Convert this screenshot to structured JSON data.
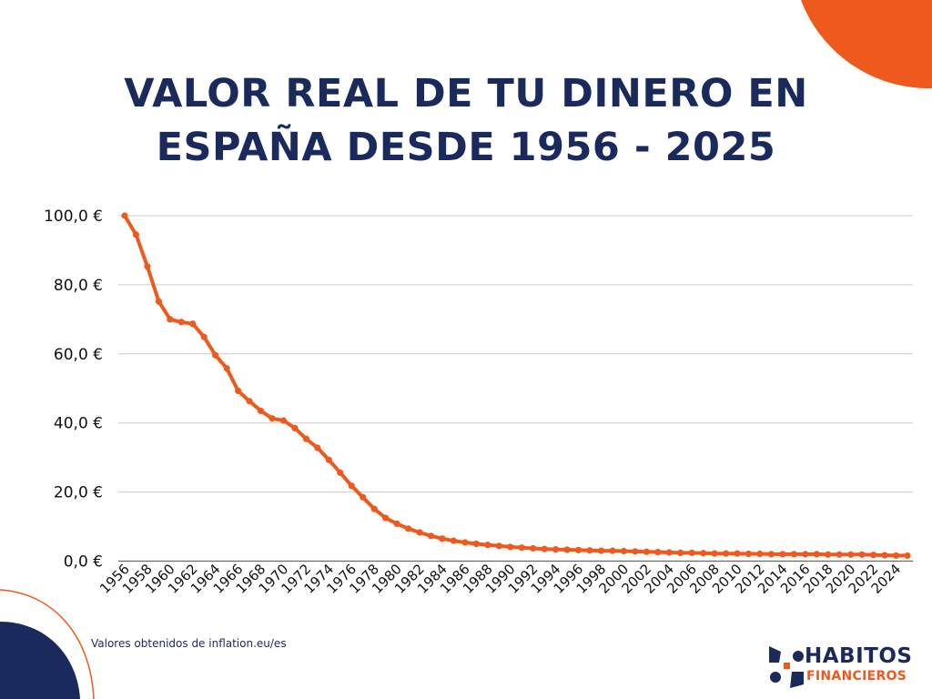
{
  "title_line1": "VALOR REAL DE TU DINERO EN",
  "title_line2": "ESPAÑA DESDE 1956 - 2025",
  "source": "Valores obtenidos de inflation.eu/es",
  "logo": {
    "line1": "HABITOS",
    "line2": "FINANCIEROS"
  },
  "colors": {
    "navy": "#1b2a5c",
    "orange": "#ee5a1e",
    "grid": "#cccccc"
  },
  "chart_data": {
    "type": "line",
    "title": "VALOR REAL DE TU DINERO EN ESPAÑA DESDE 1956 - 2025",
    "xlabel": "",
    "ylabel": "",
    "ylim": [
      0,
      100
    ],
    "grid": true,
    "y_ticks": [
      "0,0 €",
      "20,0 €",
      "40,0 €",
      "60,0 €",
      "80,0 €",
      "100,0 €"
    ],
    "y_tick_values": [
      0,
      20,
      40,
      60,
      80,
      100
    ],
    "x_tick_labels": [
      "1956",
      "1958",
      "1960",
      "1962",
      "1964",
      "1966",
      "1968",
      "1970",
      "1972",
      "1974",
      "1976",
      "1978",
      "1980",
      "1982",
      "1984",
      "1986",
      "1988",
      "1990",
      "1992",
      "1994",
      "1996",
      "1998",
      "2000",
      "2002",
      "2004",
      "2006",
      "2008",
      "2010",
      "2012",
      "2014",
      "2016",
      "2018",
      "2020",
      "2022",
      "2024"
    ],
    "x": [
      1956,
      1957,
      1958,
      1959,
      1960,
      1961,
      1962,
      1963,
      1964,
      1965,
      1966,
      1967,
      1968,
      1969,
      1970,
      1971,
      1972,
      1973,
      1974,
      1975,
      1976,
      1977,
      1978,
      1979,
      1980,
      1981,
      1982,
      1983,
      1984,
      1985,
      1986,
      1987,
      1988,
      1989,
      1990,
      1991,
      1992,
      1993,
      1994,
      1995,
      1996,
      1997,
      1998,
      1999,
      2000,
      2001,
      2002,
      2003,
      2004,
      2005,
      2006,
      2007,
      2008,
      2009,
      2010,
      2011,
      2012,
      2013,
      2014,
      2015,
      2016,
      2017,
      2018,
      2019,
      2020,
      2021,
      2022,
      2023,
      2024,
      2025
    ],
    "values": [
      100,
      94.5,
      85.3,
      75.2,
      70.0,
      69.2,
      68.7,
      64.9,
      59.6,
      55.8,
      49.3,
      46.3,
      43.5,
      41.3,
      40.7,
      38.5,
      35.4,
      32.8,
      29.3,
      25.6,
      21.8,
      18.5,
      15.1,
      12.5,
      10.8,
      9.4,
      8.3,
      7.3,
      6.5,
      5.9,
      5.4,
      5.0,
      4.7,
      4.4,
      4.1,
      3.9,
      3.7,
      3.5,
      3.4,
      3.3,
      3.2,
      3.1,
      3.0,
      3.0,
      2.9,
      2.8,
      2.7,
      2.6,
      2.5,
      2.4,
      2.4,
      2.3,
      2.2,
      2.2,
      2.2,
      2.1,
      2.1,
      2.0,
      2.0,
      2.0,
      2.0,
      2.0,
      1.9,
      1.9,
      1.9,
      1.9,
      1.8,
      1.7,
      1.6,
      1.6
    ]
  }
}
